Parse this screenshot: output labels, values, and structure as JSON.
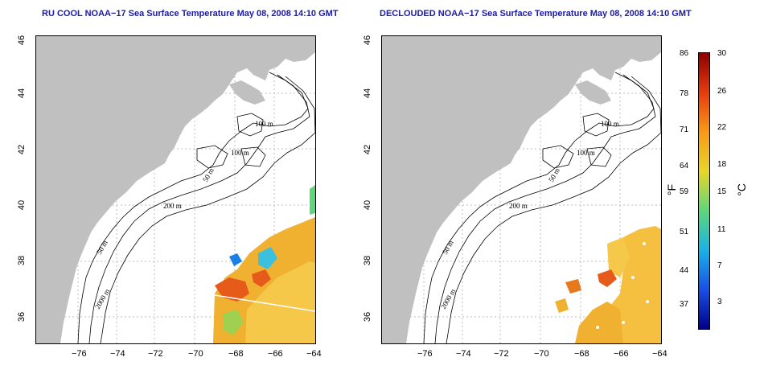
{
  "left_panel": {
    "title": "RU COOL NOAA−17 Sea Surface Temperature May 08, 2008 14:10 GMT"
  },
  "right_panel": {
    "title": "DECLOUDED NOAA−17 Sea Surface Temperature May 08, 2008 14:10 GMT"
  },
  "axes": {
    "x_ticks": [
      "−76",
      "−74",
      "−72",
      "−70",
      "−68",
      "−66",
      "−64"
    ],
    "y_ticks": [
      "46",
      "44",
      "42",
      "40",
      "38",
      "36"
    ],
    "lon_range": [
      -77,
      -63
    ],
    "lat_range": [
      35,
      46
    ]
  },
  "contours": {
    "labels": [
      "100 m",
      "100 m",
      "50 m",
      "200 m",
      "50 m",
      "2000 m"
    ]
  },
  "colorbar": {
    "f_ticks": [
      "86",
      "78",
      "71",
      "64",
      "59",
      "51",
      "44",
      "37"
    ],
    "c_ticks": [
      "30",
      "26",
      "22",
      "18",
      "15",
      "11",
      "7",
      "3"
    ],
    "f_unit": "°F",
    "c_unit": "°C",
    "colors": [
      "#8b0000",
      "#e63b10",
      "#f79a18",
      "#e8d52a",
      "#5fd67a",
      "#1ab3e6",
      "#1a4fe6",
      "#00008b"
    ]
  },
  "colors": {
    "land": "#c0c0c0",
    "title": "#1a1aa8"
  }
}
